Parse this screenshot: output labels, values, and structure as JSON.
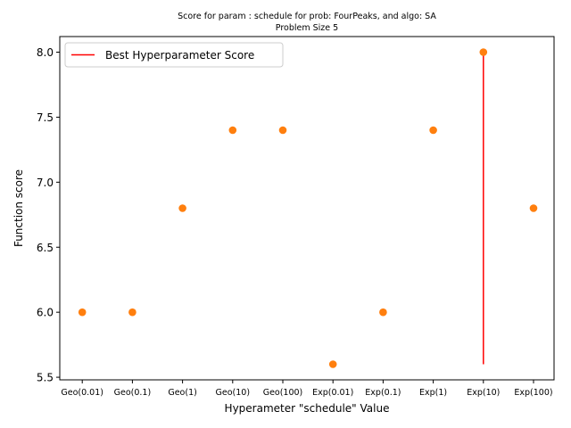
{
  "chart_data": {
    "type": "scatter",
    "title_line1": "Score for param : schedule for prob: FourPeaks, and algo: SA",
    "title_line2": "Problem Size 5",
    "xlabel": "Hyperameter \"schedule\" Value",
    "ylabel": "Function score",
    "categories": [
      "Geo(0.01)",
      "Geo(0.1)",
      "Geo(1)",
      "Geo(10)",
      "Geo(100)",
      "Exp(0.01)",
      "Exp(0.1)",
      "Exp(1)",
      "Exp(10)",
      "Exp(100)"
    ],
    "values": [
      6.0,
      6.0,
      6.8,
      7.4,
      7.4,
      5.6,
      6.0,
      7.4,
      8.0,
      6.8
    ],
    "ylim": [
      5.48,
      8.12
    ],
    "yticks": [
      5.5,
      6.0,
      6.5,
      7.0,
      7.5,
      8.0
    ],
    "ytick_labels": [
      "5.5",
      "6.0",
      "6.5",
      "7.0",
      "7.5",
      "8.0"
    ],
    "best_line": {
      "category_index": 8,
      "y_from": 5.6,
      "y_to": 8.0,
      "color": "#ff0000"
    },
    "legend": {
      "label": "Best Hyperparameter Score",
      "placement": "top-left"
    },
    "point_color": "#ff7f0e",
    "grid": false
  }
}
